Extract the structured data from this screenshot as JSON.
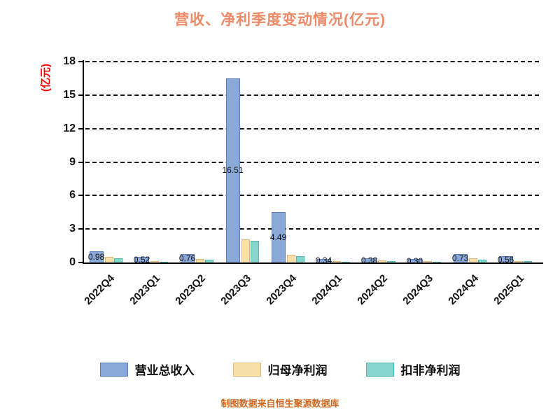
{
  "title": "营收、净利季度变动情况(亿元)",
  "y_axis_label": "(亿元)",
  "caption": "制图数据来自恒生聚源数据库",
  "colors": {
    "title": "#ef8a68",
    "y_axis_label": "#ff0000",
    "caption": "#d2691e",
    "axis": "#000000",
    "grid": "#111111"
  },
  "chart_data": {
    "type": "bar",
    "title": "营收、净利季度变动情况(亿元)",
    "ylabel": "(亿元)",
    "categories": [
      "2022Q4",
      "2023Q1",
      "2023Q2",
      "2023Q3",
      "2023Q4",
      "2024Q1",
      "2024Q2",
      "2024Q3",
      "2024Q4",
      "2025Q1"
    ],
    "series": [
      {
        "name": "营业总收入",
        "color": "#8aa8d8",
        "border": "#5c7fbf",
        "values": [
          0.98,
          0.52,
          0.76,
          16.51,
          4.49,
          0.34,
          0.38,
          0.3,
          0.73,
          0.56
        ]
      },
      {
        "name": "归母净利润",
        "color": "#f9dfa9",
        "border": "#e0b97a",
        "values": [
          0.48,
          0.1,
          0.32,
          2.05,
          0.7,
          0.12,
          0.16,
          0.1,
          0.35,
          0.14
        ]
      },
      {
        "name": "扣非净利润",
        "color": "#86d6ce",
        "border": "#4db8ae",
        "values": [
          0.4,
          0.07,
          0.24,
          1.92,
          0.55,
          0.08,
          0.11,
          0.07,
          0.28,
          0.1
        ]
      }
    ],
    "value_labels": [
      "0.98",
      "0.52",
      "0.76",
      "16.51",
      "4.49",
      "0.34",
      "0.38",
      "0.30",
      "0.73",
      "0.56"
    ],
    "ylim": [
      0,
      18
    ],
    "yticks": [
      0,
      3,
      6,
      9,
      12,
      15,
      18
    ],
    "grid": "dashed-horizontal",
    "legend_position": "bottom",
    "x_tick_rotation": 45
  }
}
